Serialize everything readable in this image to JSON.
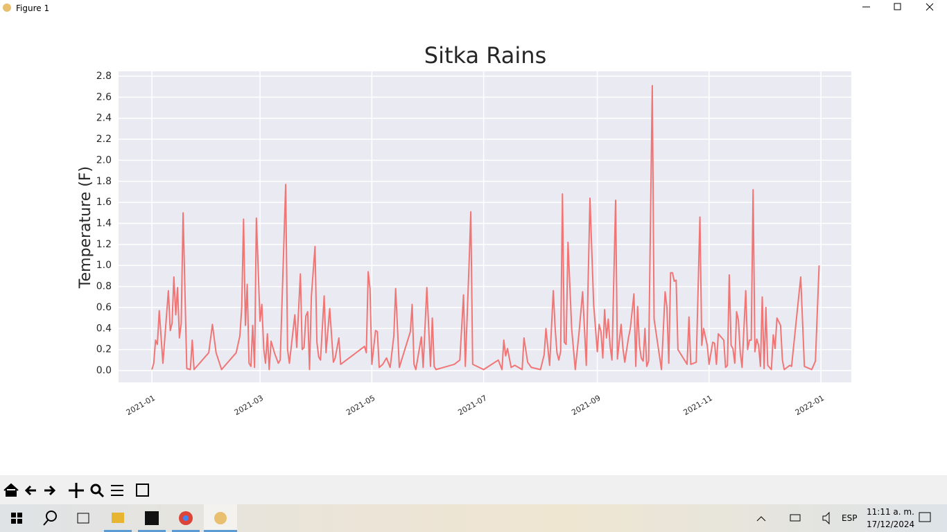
{
  "window": {
    "title": "Figure 1",
    "language": "ESP",
    "time": "11:11 a. m.",
    "date": "17/12/2024"
  },
  "chart_data": {
    "type": "line",
    "title": "Sitka Rains",
    "y_label": "Temperature (F)",
    "color": "#f07575",
    "grid": true,
    "xlim": [
      -18.2,
      381.6
    ],
    "xticks": [
      {
        "value": 0,
        "label": "2021-01"
      },
      {
        "value": 59,
        "label": "2021-03"
      },
      {
        "value": 120,
        "label": "2021-05"
      },
      {
        "value": 181,
        "label": "2021-07"
      },
      {
        "value": 243,
        "label": "2021-09"
      },
      {
        "value": 304,
        "label": "2021-11"
      },
      {
        "value": 365,
        "label": "2022-01"
      }
    ],
    "ylim": [
      -0.112,
      2.846
    ],
    "yticks": [
      {
        "value": 0,
        "label": "0.0"
      },
      0.2,
      0.4,
      0.6,
      0.8,
      {
        "value": 1,
        "label": "1.0"
      },
      1.2,
      1.4,
      1.6,
      1.8,
      {
        "value": 2,
        "label": "2.0"
      },
      2.2,
      2.4,
      2.6,
      2.8
    ],
    "x": [
      0,
      1,
      2,
      3,
      4,
      6,
      9,
      10,
      11,
      12,
      13,
      14,
      15,
      16,
      17,
      19,
      21,
      22,
      23,
      31,
      33,
      35,
      38,
      46,
      48,
      49,
      50,
      51,
      52,
      53,
      54,
      55,
      56,
      57,
      59,
      60,
      61,
      62,
      63,
      64,
      65,
      67,
      69,
      70,
      73,
      74,
      75,
      78,
      79,
      81,
      82,
      83,
      84,
      85,
      86,
      87,
      89,
      90,
      91,
      92,
      94,
      95,
      97,
      99,
      100,
      102,
      103,
      116,
      117,
      118,
      119,
      120,
      122,
      123,
      124,
      126,
      128,
      130,
      132,
      133,
      135,
      141,
      142,
      143,
      144,
      147,
      148,
      150,
      152,
      153,
      154,
      155,
      165,
      168,
      170,
      171,
      173,
      174,
      175,
      181,
      189,
      191,
      192,
      193,
      194,
      196,
      198,
      202,
      203,
      205,
      207,
      212,
      214,
      215,
      217,
      219,
      220,
      221,
      222,
      223,
      224,
      225,
      226,
      227,
      229,
      231,
      233,
      235,
      237,
      239,
      241,
      243,
      244,
      245,
      246,
      247,
      248,
      249,
      250,
      251,
      253,
      254,
      255,
      256,
      257,
      258,
      260,
      261,
      263,
      264,
      265,
      266,
      267,
      268,
      269,
      270,
      271,
      273,
      274,
      278,
      280,
      281,
      282,
      283,
      284,
      285,
      286,
      287,
      292,
      293,
      294,
      297,
      299,
      300,
      301,
      303,
      304,
      306,
      307,
      308,
      309,
      312,
      313,
      314,
      315,
      316,
      317,
      318,
      319,
      320,
      321,
      322,
      324,
      325,
      326,
      327,
      328,
      329,
      330,
      331,
      332,
      333,
      334,
      335,
      336,
      338,
      339,
      340,
      341,
      343,
      344,
      345,
      348,
      349,
      354,
      356,
      360,
      362,
      364
    ],
    "values": [
      0.01,
      0.07,
      0.29,
      0.25,
      0.57,
      0.07,
      0.76,
      0.38,
      0.45,
      0.89,
      0.53,
      0.79,
      0.31,
      0.45,
      1.5,
      0.02,
      0.01,
      0.29,
      0.01,
      0.17,
      0.44,
      0.17,
      0.01,
      0.17,
      0.33,
      0.6,
      1.44,
      0.43,
      0.82,
      0.07,
      0.04,
      0.43,
      0.03,
      1.45,
      0.47,
      0.63,
      0.21,
      0.07,
      0.35,
      0.01,
      0.28,
      0.16,
      0.07,
      0.1,
      1.77,
      0.2,
      0.07,
      0.53,
      0.22,
      0.92,
      0.2,
      0.22,
      0.52,
      0.56,
      0.01,
      0.7,
      1.18,
      0.27,
      0.13,
      0.1,
      0.71,
      0.17,
      0.59,
      0.08,
      0.12,
      0.31,
      0.06,
      0.23,
      0.17,
      0.94,
      0.78,
      0.06,
      0.38,
      0.37,
      0.03,
      0.06,
      0.12,
      0.03,
      0.33,
      0.78,
      0.03,
      0.37,
      0.63,
      0.06,
      0.01,
      0.32,
      0.03,
      0.79,
      0.04,
      0.5,
      0.04,
      0.01,
      0.06,
      0.1,
      0.72,
      0.04,
      0.99,
      1.51,
      0.06,
      0.01,
      0.1,
      0.01,
      0.29,
      0.14,
      0.21,
      0.03,
      0.05,
      0.01,
      0.31,
      0.08,
      0.03,
      0.01,
      0.15,
      0.4,
      0.05,
      0.76,
      0.4,
      0.17,
      0.1,
      0.18,
      1.68,
      0.27,
      0.25,
      1.22,
      0.4,
      0.01,
      0.35,
      0.75,
      0.05,
      1.64,
      0.63,
      0.18,
      0.44,
      0.37,
      0.12,
      0.58,
      0.31,
      0.49,
      0.23,
      0.1,
      1.62,
      0.11,
      0.28,
      0.44,
      0.21,
      0.08,
      0.31,
      0.4,
      0.73,
      0.04,
      0.61,
      0.24,
      0.12,
      0.09,
      0.4,
      0.04,
      0.09,
      2.71,
      0.49,
      0.01,
      0.75,
      0.6,
      0.07,
      0.93,
      0.93,
      0.85,
      0.86,
      0.2,
      0.06,
      0.51,
      0.06,
      0.08,
      1.46,
      0.24,
      0.4,
      0.24,
      0.06,
      0.27,
      0.26,
      0.06,
      0.35,
      0.29,
      0.03,
      0.05,
      0.91,
      0.24,
      0.21,
      0.07,
      0.56,
      0.48,
      0.17,
      0.03,
      0.76,
      0.2,
      0.29,
      0.29,
      1.72,
      0.18,
      0.3,
      0.24,
      0.04,
      0.7,
      0.02,
      0.6,
      0.05,
      0.01,
      0.34,
      0.21,
      0.5,
      0.43,
      0.1,
      0.01,
      0.05,
      0.04,
      0.89,
      0.04,
      0.01,
      0.09,
      1.0
    ]
  }
}
